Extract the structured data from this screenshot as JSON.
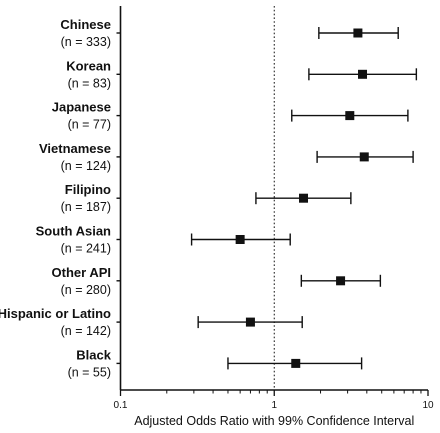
{
  "chart_data": {
    "type": "forest",
    "xlabel": "Adjusted Odds Ratio with 99% Confidence Interval",
    "xscale": "log",
    "xlim": [
      0.1,
      10
    ],
    "xticks": [
      0.1,
      1,
      10
    ],
    "xtick_labels": [
      "0.1",
      "1",
      "10"
    ],
    "reference_line": 1,
    "grid": false,
    "categories": [
      {
        "name": "Chinese",
        "n_label": "(n = 333)",
        "estimate": 3.5,
        "ci_low": 1.95,
        "ci_high": 6.4
      },
      {
        "name": "Korean",
        "n_label": "(n = 83)",
        "estimate": 3.75,
        "ci_low": 1.68,
        "ci_high": 8.4
      },
      {
        "name": "Japanese",
        "n_label": "(n = 77)",
        "estimate": 3.1,
        "ci_low": 1.3,
        "ci_high": 7.4
      },
      {
        "name": "Vietnamese",
        "n_label": "(n = 124)",
        "estimate": 3.85,
        "ci_low": 1.9,
        "ci_high": 8.0
      },
      {
        "name": "Filipino",
        "n_label": "(n = 187)",
        "estimate": 1.55,
        "ci_low": 0.76,
        "ci_high": 3.15
      },
      {
        "name": "South Asian",
        "n_label": "(n = 241)",
        "estimate": 0.6,
        "ci_low": 0.29,
        "ci_high": 1.27
      },
      {
        "name": "Other API",
        "n_label": "(n = 280)",
        "estimate": 2.7,
        "ci_low": 1.5,
        "ci_high": 4.9
      },
      {
        "name": "Hispanic or Latino",
        "n_label": "(n = 142)",
        "estimate": 0.7,
        "ci_low": 0.32,
        "ci_high": 1.52
      },
      {
        "name": "Black",
        "n_label": "(n = 55)",
        "estimate": 1.38,
        "ci_low": 0.5,
        "ci_high": 3.7
      }
    ],
    "marker": "square",
    "color": "#111111"
  }
}
